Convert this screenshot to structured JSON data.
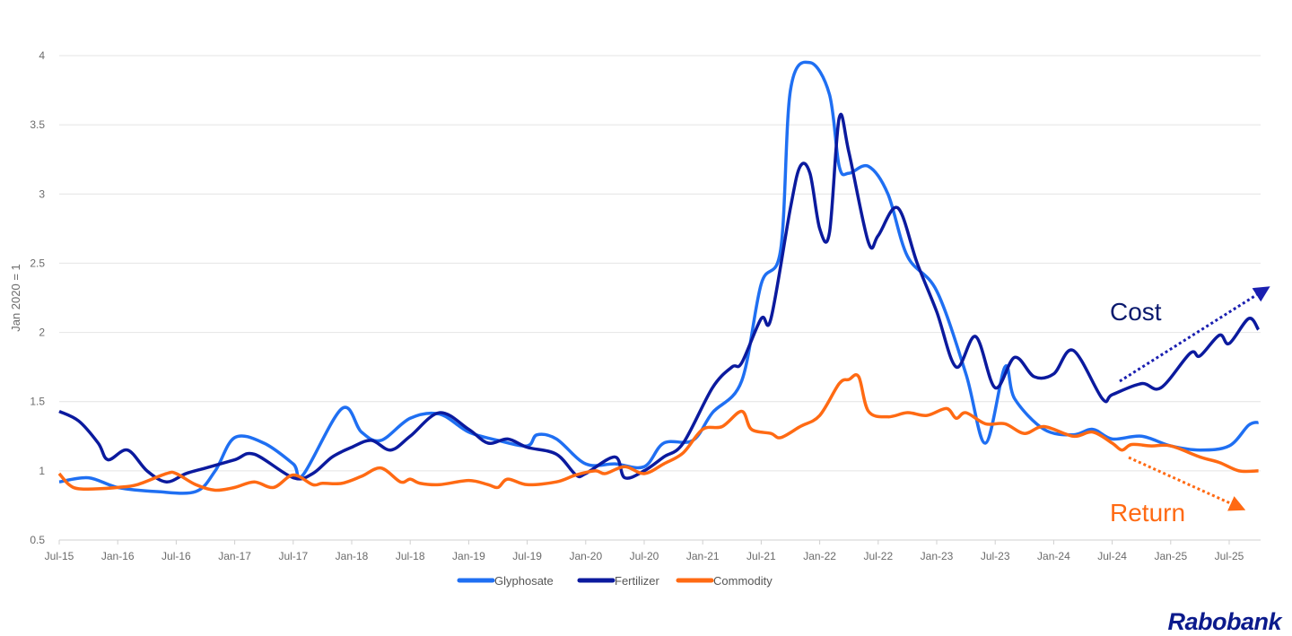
{
  "chart_data": {
    "type": "line",
    "title": "",
    "xlabel": "",
    "ylabel": "Jan 2020 = 1",
    "ylim": [
      0.5,
      4
    ],
    "yticks": [
      "0.5",
      "1",
      "1.5",
      "2",
      "2.5",
      "3",
      "3.5",
      "4"
    ],
    "xticks": [
      "Jul-15",
      "Jan-16",
      "Jul-16",
      "Jan-17",
      "Jul-17",
      "Jan-18",
      "Jul-18",
      "Jan-19",
      "Jul-19",
      "Jan-20",
      "Jul-20",
      "Jan-21",
      "Jul-21",
      "Jan-22",
      "Jul-22",
      "Jan-23",
      "Jul-23",
      "Jan-24",
      "Jul-24",
      "Jan-25",
      "Jul-25"
    ],
    "xrange": [
      "2015-07",
      "2025-10"
    ],
    "grid": "horizontal",
    "legend_position": "bottom",
    "series": [
      {
        "name": "Glyphosate",
        "color": "#1f6ff2",
        "points": [
          [
            "2015-07",
            0.92
          ],
          [
            "2015-10",
            0.95
          ],
          [
            "2016-01",
            0.88
          ],
          [
            "2016-05",
            0.85
          ],
          [
            "2016-09",
            0.85
          ],
          [
            "2016-11",
            1.0
          ],
          [
            "2017-01",
            1.24
          ],
          [
            "2017-04",
            1.2
          ],
          [
            "2017-07",
            1.05
          ],
          [
            "2017-08",
            0.97
          ],
          [
            "2017-12",
            1.45
          ],
          [
            "2018-02",
            1.28
          ],
          [
            "2018-04",
            1.22
          ],
          [
            "2018-07",
            1.38
          ],
          [
            "2018-10",
            1.41
          ],
          [
            "2019-01",
            1.28
          ],
          [
            "2019-04",
            1.22
          ],
          [
            "2019-07",
            1.18
          ],
          [
            "2019-08",
            1.26
          ],
          [
            "2019-10",
            1.23
          ],
          [
            "2020-01",
            1.05
          ],
          [
            "2020-04",
            1.05
          ],
          [
            "2020-07",
            1.03
          ],
          [
            "2020-09",
            1.2
          ],
          [
            "2020-12",
            1.22
          ],
          [
            "2021-02",
            1.42
          ],
          [
            "2021-05",
            1.65
          ],
          [
            "2021-07",
            2.35
          ],
          [
            "2021-09",
            2.6
          ],
          [
            "2021-10",
            3.75
          ],
          [
            "2021-12",
            3.95
          ],
          [
            "2022-02",
            3.72
          ],
          [
            "2022-03",
            3.2
          ],
          [
            "2022-04",
            3.15
          ],
          [
            "2022-06",
            3.2
          ],
          [
            "2022-08",
            3.0
          ],
          [
            "2022-10",
            2.55
          ],
          [
            "2023-01",
            2.3
          ],
          [
            "2023-04",
            1.7
          ],
          [
            "2023-06",
            1.2
          ],
          [
            "2023-08",
            1.75
          ],
          [
            "2023-09",
            1.52
          ],
          [
            "2023-12",
            1.3
          ],
          [
            "2024-03",
            1.26
          ],
          [
            "2024-05",
            1.3
          ],
          [
            "2024-07",
            1.23
          ],
          [
            "2024-10",
            1.25
          ],
          [
            "2025-01",
            1.18
          ],
          [
            "2025-04",
            1.15
          ],
          [
            "2025-07",
            1.18
          ],
          [
            "2025-09",
            1.33
          ],
          [
            "2025-10",
            1.35
          ]
        ]
      },
      {
        "name": "Fertilizer",
        "color": "#0b1a9e",
        "points": [
          [
            "2015-07",
            1.43
          ],
          [
            "2015-09",
            1.36
          ],
          [
            "2015-11",
            1.2
          ],
          [
            "2015-12",
            1.08
          ],
          [
            "2016-02",
            1.15
          ],
          [
            "2016-04",
            1.0
          ],
          [
            "2016-06",
            0.92
          ],
          [
            "2016-08",
            0.98
          ],
          [
            "2016-10",
            1.02
          ],
          [
            "2017-01",
            1.08
          ],
          [
            "2017-03",
            1.12
          ],
          [
            "2017-07",
            0.95
          ],
          [
            "2017-09",
            0.98
          ],
          [
            "2017-11",
            1.1
          ],
          [
            "2018-01",
            1.17
          ],
          [
            "2018-03",
            1.22
          ],
          [
            "2018-05",
            1.15
          ],
          [
            "2018-07",
            1.25
          ],
          [
            "2018-10",
            1.42
          ],
          [
            "2019-01",
            1.3
          ],
          [
            "2019-03",
            1.2
          ],
          [
            "2019-05",
            1.23
          ],
          [
            "2019-07",
            1.17
          ],
          [
            "2019-10",
            1.12
          ],
          [
            "2019-12",
            0.97
          ],
          [
            "2020-01",
            0.98
          ],
          [
            "2020-04",
            1.1
          ],
          [
            "2020-05",
            0.95
          ],
          [
            "2020-07",
            1.0
          ],
          [
            "2020-09",
            1.1
          ],
          [
            "2020-11",
            1.2
          ],
          [
            "2021-02",
            1.6
          ],
          [
            "2021-04",
            1.75
          ],
          [
            "2021-05",
            1.78
          ],
          [
            "2021-07",
            2.1
          ],
          [
            "2021-08",
            2.1
          ],
          [
            "2021-10",
            2.9
          ],
          [
            "2021-11",
            3.2
          ],
          [
            "2021-12",
            3.15
          ],
          [
            "2022-01",
            2.75
          ],
          [
            "2022-02",
            2.72
          ],
          [
            "2022-03",
            3.55
          ],
          [
            "2022-04",
            3.3
          ],
          [
            "2022-06",
            2.65
          ],
          [
            "2022-07",
            2.7
          ],
          [
            "2022-09",
            2.9
          ],
          [
            "2022-11",
            2.5
          ],
          [
            "2023-01",
            2.15
          ],
          [
            "2023-03",
            1.75
          ],
          [
            "2023-05",
            1.97
          ],
          [
            "2023-07",
            1.6
          ],
          [
            "2023-09",
            1.82
          ],
          [
            "2023-11",
            1.68
          ],
          [
            "2024-01",
            1.7
          ],
          [
            "2024-03",
            1.87
          ],
          [
            "2024-06",
            1.52
          ],
          [
            "2024-07",
            1.55
          ],
          [
            "2024-10",
            1.63
          ],
          [
            "2024-12",
            1.6
          ],
          [
            "2025-03",
            1.85
          ],
          [
            "2025-04",
            1.83
          ],
          [
            "2025-06",
            1.98
          ],
          [
            "2025-07",
            1.92
          ],
          [
            "2025-09",
            2.1
          ],
          [
            "2025-10",
            2.02
          ]
        ]
      },
      {
        "name": "Commodity",
        "color": "#ff6a13",
        "points": [
          [
            "2015-07",
            0.98
          ],
          [
            "2015-08",
            0.9
          ],
          [
            "2015-09",
            0.87
          ],
          [
            "2015-11",
            0.87
          ],
          [
            "2016-01",
            0.88
          ],
          [
            "2016-03",
            0.9
          ],
          [
            "2016-06",
            0.98
          ],
          [
            "2016-07",
            0.98
          ],
          [
            "2016-09",
            0.9
          ],
          [
            "2016-11",
            0.86
          ],
          [
            "2017-01",
            0.88
          ],
          [
            "2017-03",
            0.92
          ],
          [
            "2017-05",
            0.88
          ],
          [
            "2017-07",
            0.97
          ],
          [
            "2017-09",
            0.9
          ],
          [
            "2017-10",
            0.91
          ],
          [
            "2017-12",
            0.91
          ],
          [
            "2018-02",
            0.96
          ],
          [
            "2018-04",
            1.02
          ],
          [
            "2018-06",
            0.92
          ],
          [
            "2018-07",
            0.94
          ],
          [
            "2018-08",
            0.91
          ],
          [
            "2018-10",
            0.9
          ],
          [
            "2019-01",
            0.93
          ],
          [
            "2019-03",
            0.9
          ],
          [
            "2019-04",
            0.88
          ],
          [
            "2019-05",
            0.94
          ],
          [
            "2019-07",
            0.9
          ],
          [
            "2019-10",
            0.92
          ],
          [
            "2019-12",
            0.97
          ],
          [
            "2020-02",
            1.0
          ],
          [
            "2020-03",
            0.98
          ],
          [
            "2020-05",
            1.03
          ],
          [
            "2020-07",
            0.98
          ],
          [
            "2020-09",
            1.05
          ],
          [
            "2020-11",
            1.13
          ],
          [
            "2021-01",
            1.3
          ],
          [
            "2021-03",
            1.32
          ],
          [
            "2021-05",
            1.43
          ],
          [
            "2021-06",
            1.3
          ],
          [
            "2021-08",
            1.27
          ],
          [
            "2021-09",
            1.24
          ],
          [
            "2021-11",
            1.32
          ],
          [
            "2022-01",
            1.4
          ],
          [
            "2022-03",
            1.63
          ],
          [
            "2022-04",
            1.66
          ],
          [
            "2022-05",
            1.68
          ],
          [
            "2022-06",
            1.43
          ],
          [
            "2022-08",
            1.39
          ],
          [
            "2022-10",
            1.42
          ],
          [
            "2022-12",
            1.4
          ],
          [
            "2023-02",
            1.45
          ],
          [
            "2023-03",
            1.38
          ],
          [
            "2023-04",
            1.42
          ],
          [
            "2023-06",
            1.34
          ],
          [
            "2023-08",
            1.34
          ],
          [
            "2023-10",
            1.27
          ],
          [
            "2023-12",
            1.32
          ],
          [
            "2024-03",
            1.25
          ],
          [
            "2024-05",
            1.28
          ],
          [
            "2024-07",
            1.2
          ],
          [
            "2024-08",
            1.15
          ],
          [
            "2024-09",
            1.19
          ],
          [
            "2024-11",
            1.18
          ],
          [
            "2025-01",
            1.18
          ],
          [
            "2025-04",
            1.1
          ],
          [
            "2025-06",
            1.06
          ],
          [
            "2025-08",
            1.0
          ],
          [
            "2025-10",
            1.0
          ]
        ]
      }
    ],
    "annotations": [
      {
        "text": "Cost",
        "color": "#0b1a6e",
        "direction": "up"
      },
      {
        "text": "Return",
        "color": "#ff6a13",
        "direction": "down"
      }
    ]
  },
  "brand": {
    "logo_text": "Rabobank",
    "color": "#0b1a8c"
  }
}
